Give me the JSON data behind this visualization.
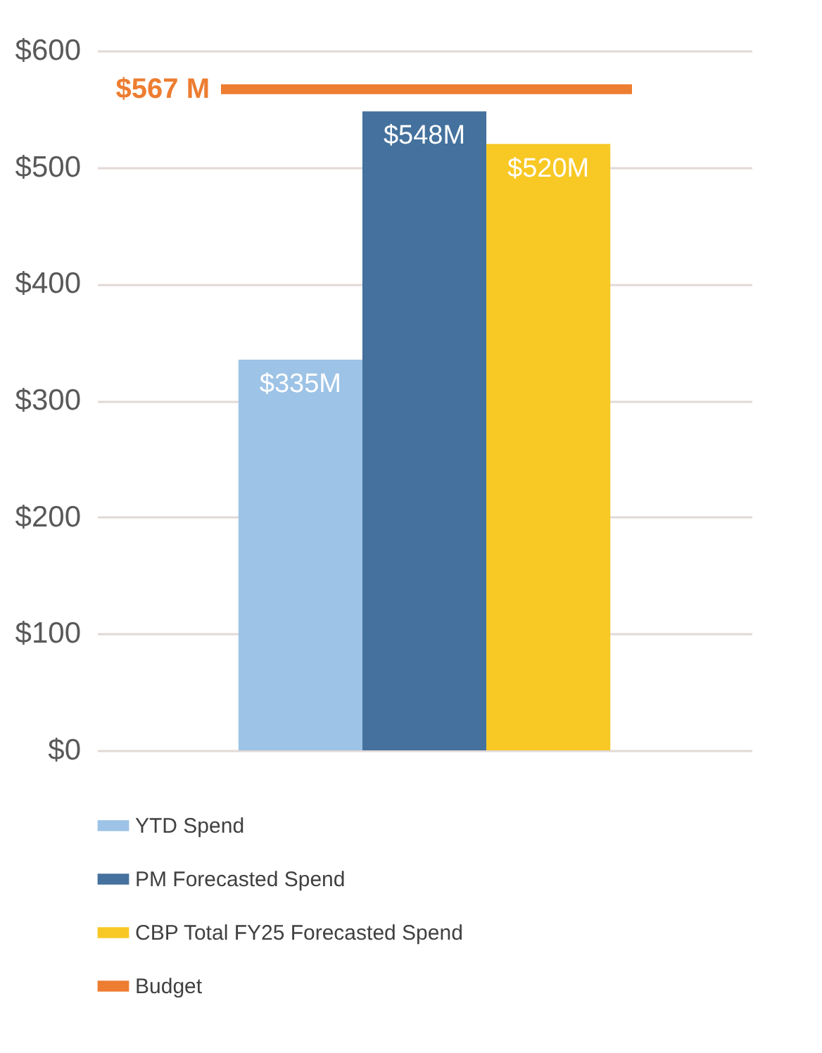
{
  "chart_data": {
    "type": "bar",
    "categories": [
      null
    ],
    "series": [
      {
        "name": "YTD Spend",
        "color": "#9dc3e6",
        "values": [
          335
        ],
        "value_labels": [
          "$335M"
        ]
      },
      {
        "name": "PM Forecasted Spend",
        "color": "#44719d",
        "values": [
          548
        ],
        "value_labels": [
          "$548M"
        ]
      },
      {
        "name": "CBP Total FY25 Forecasted Spend",
        "color": "#f8c824",
        "values": [
          520
        ],
        "value_labels": [
          "$520M"
        ]
      }
    ],
    "ref_lines": [
      {
        "axis": "y",
        "value": 567,
        "label": "Budget",
        "color": "#ed7d31"
      }
    ],
    "annotations": [
      "$567 M"
    ],
    "ylim": [
      0,
      600
    ],
    "yticks": [
      {
        "value": 0,
        "label": "$0"
      },
      {
        "value": 100,
        "label": "$100"
      },
      {
        "value": 200,
        "label": "$200"
      },
      {
        "value": 300,
        "label": "$300"
      },
      {
        "value": 400,
        "label": "$400"
      },
      {
        "value": 500,
        "label": "$500"
      },
      {
        "value": 600,
        "label": "$600"
      }
    ],
    "grid": "y",
    "legend": "bottom"
  }
}
